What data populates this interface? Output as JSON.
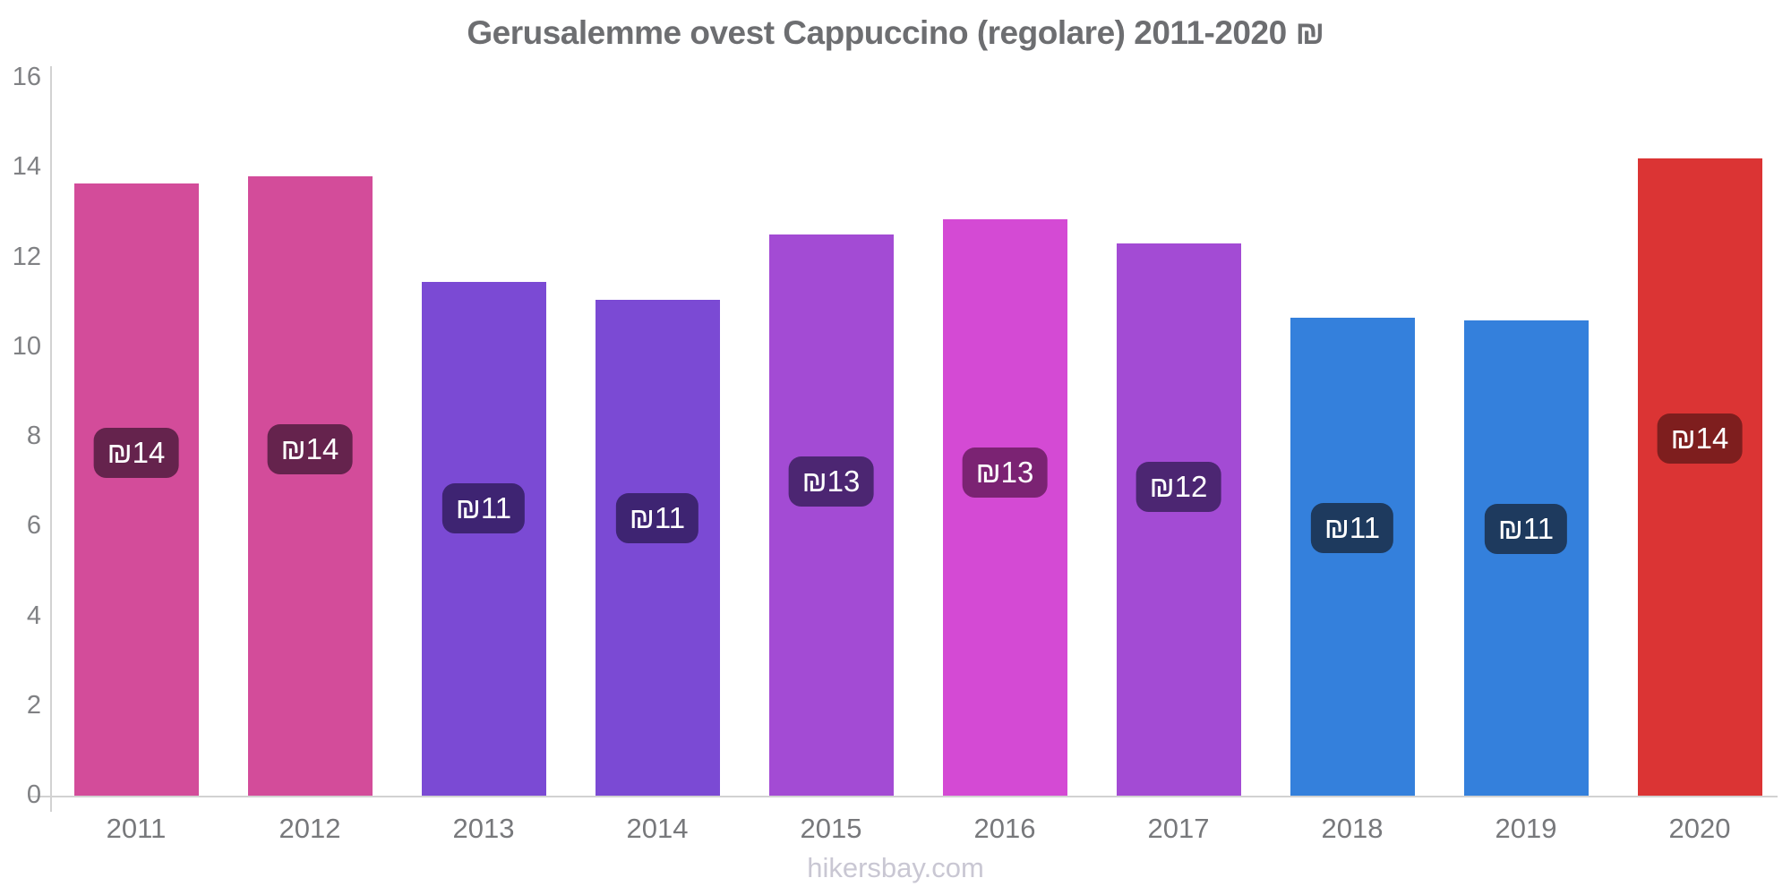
{
  "title": "Gerusalemme ovest Cappuccino (regolare) 2011-2020 ₪",
  "footer": "hikersbay.com",
  "colors": {
    "title_text": "#6d6e71",
    "tick_text": "#808184",
    "x_label_text": "#77787b",
    "axis_line": "#d2d2d2",
    "footer_text": "#c9c7d3",
    "badge_text": "#ffffff"
  },
  "chart_data": {
    "type": "bar",
    "title": "Gerusalemme ovest Cappuccino (regolare) 2011-2020 ₪",
    "xlabel": "",
    "ylabel": "",
    "currency": "₪",
    "categories": [
      "2011",
      "2012",
      "2013",
      "2014",
      "2015",
      "2016",
      "2017",
      "2018",
      "2019",
      "2020"
    ],
    "values": [
      13.65,
      13.8,
      11.45,
      11.05,
      12.5,
      12.85,
      12.3,
      10.65,
      10.6,
      14.2
    ],
    "bar_labels": [
      "₪14",
      "₪14",
      "₪11",
      "₪11",
      "₪13",
      "₪13",
      "₪12",
      "₪11",
      "₪11",
      "₪14"
    ],
    "bar_colors": [
      "#d34c9a",
      "#d34c9a",
      "#7b4ad4",
      "#7b4ad4",
      "#a34bd4",
      "#d44ad4",
      "#a34bd4",
      "#3480dc",
      "#3480dc",
      "#db3434"
    ],
    "badge_colors": [
      "#65234d",
      "#65234d",
      "#3e2472",
      "#3e2472",
      "#4c2672",
      "#7b2373",
      "#4c2672",
      "#1e3a5e",
      "#1e3a5e",
      "#7e1e1e"
    ],
    "ylim": [
      0,
      16
    ],
    "yticks": [
      0,
      2,
      4,
      6,
      8,
      10,
      12,
      14,
      16
    ],
    "grid": false,
    "legend": "none"
  }
}
